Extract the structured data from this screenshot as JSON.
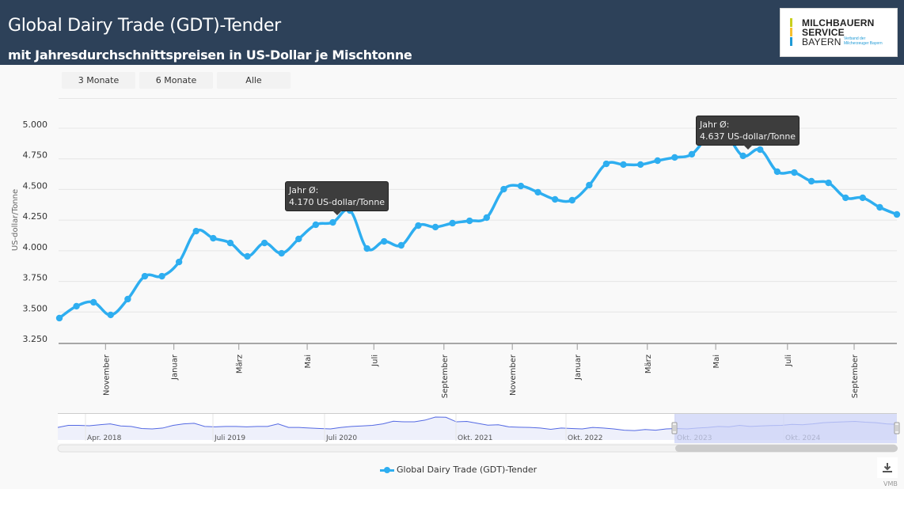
{
  "header": {
    "title": "Global Dairy Trade (GDT)-Tender",
    "subtitle": "mit Jahresdurchschnittspreisen in US-Dollar je Mischtonne",
    "logo": {
      "line1": "MILCHBAUERN",
      "line2": "SERVICE",
      "line3": "BAYERN",
      "tagline": "Verband der Milcherzeuger Bayern",
      "bar_colors": [
        "#c8cf1e",
        "#f6c02f",
        "#1f9ad6"
      ]
    }
  },
  "range_selector": {
    "buttons": [
      "3 Monate",
      "6 Monate",
      "Alle"
    ]
  },
  "tooltips": [
    {
      "label": "Jahr Ø:",
      "value": "4.170 US-dollar/Tonne"
    },
    {
      "label": "Jahr Ø:",
      "value": "4.637 US-dollar/Tonne"
    }
  ],
  "navigator": {
    "labels": [
      "Apr. 2018",
      "Juli 2019",
      "Juli 2020",
      "Okt. 2021",
      "Okt. 2022",
      "Okt. 2023",
      "Okt. 2024"
    ]
  },
  "legend": {
    "series_name": "Global Dairy Trade (GDT)-Tender"
  },
  "download": {
    "icon": "download-icon"
  },
  "credit": "VMB",
  "colors": {
    "header_bg": "#2d4159",
    "series": "#2eaef0",
    "tooltip_bg": "#3d3d3d",
    "navigator_selection": "#ccd3f7"
  },
  "chart_data": {
    "type": "line",
    "title": "Global Dairy Trade (GDT)-Tender",
    "subtitle": "mit Jahresdurchschnittspreisen in US-Dollar je Mischtonne",
    "xlabel": "",
    "ylabel": "US-dollar/Tonne",
    "ylim": [
      3250,
      5100
    ],
    "yticks": [
      "3.250",
      "3.500",
      "3.750",
      "4.000",
      "4.250",
      "4.500",
      "4.750",
      "5.000"
    ],
    "ytick_values": [
      3250,
      3500,
      3750,
      4000,
      4250,
      4500,
      4750,
      5000
    ],
    "xtick_labels": [
      "November",
      "Januar",
      "März",
      "Mai",
      "Juli",
      "September",
      "November",
      "Januar",
      "März",
      "Mai",
      "Juli",
      "September"
    ],
    "xtick_positions": [
      2.7,
      6.7,
      10.5,
      14.5,
      18.4,
      22.5,
      26.5,
      30.3,
      34.4,
      38.4,
      42.6,
      46.5
    ],
    "grid": true,
    "legend": "bottom-center",
    "series": [
      {
        "name": "Global Dairy Trade (GDT)-Tender",
        "values": [
          3418,
          3515,
          3547,
          3444,
          3573,
          3760,
          3760,
          3876,
          4128,
          4070,
          4031,
          3922,
          4031,
          3947,
          4064,
          4180,
          4199,
          4296,
          3986,
          4044,
          4012,
          4173,
          4161,
          4193,
          4212,
          4238,
          4470,
          4496,
          4445,
          4387,
          4380,
          4503,
          4677,
          4671,
          4671,
          4703,
          4729,
          4755,
          4903,
          4910,
          4742,
          4793,
          4613,
          4606,
          4535,
          4522,
          4400,
          4400,
          4322,
          4264
        ]
      }
    ],
    "annotations": [
      {
        "point_index": 17,
        "text": "Jahr Ø: 4.170 US-dollar/Tonne"
      },
      {
        "point_index": 40,
        "text": "Jahr Ø: 4.637 US-dollar/Tonne"
      }
    ]
  }
}
